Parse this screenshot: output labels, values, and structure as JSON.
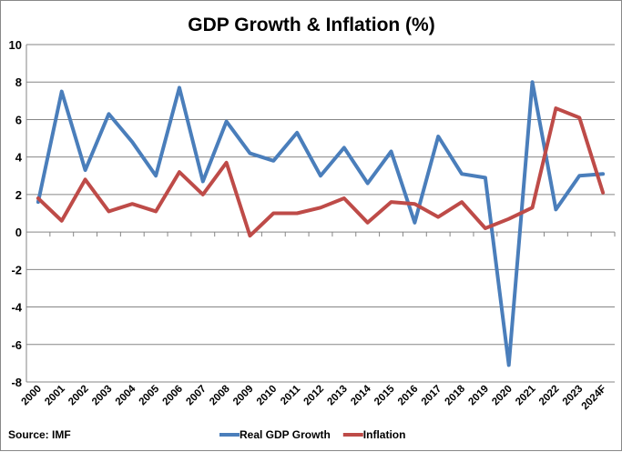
{
  "chart_data": {
    "type": "line",
    "title": "GDP Growth & Inflation (%)",
    "xlabel": "",
    "ylabel": "",
    "ylim": [
      -8,
      10
    ],
    "yticks": [
      10,
      8,
      6,
      4,
      2,
      0,
      -2,
      -4,
      -6,
      -8
    ],
    "grid": true,
    "legend": "bottom",
    "categories": [
      "2000",
      "2001",
      "2002",
      "2003",
      "2004",
      "2005",
      "2006",
      "2007",
      "2008",
      "2009",
      "2010",
      "2011",
      "2012",
      "2013",
      "2014",
      "2015",
      "2016",
      "2017",
      "2018",
      "2019",
      "2020",
      "2021",
      "2022",
      "2023",
      "2024F"
    ],
    "series": [
      {
        "name": "Real GDP Growth",
        "color": "#4a7ebb",
        "values": [
          1.6,
          7.5,
          3.3,
          6.3,
          4.8,
          3.0,
          7.7,
          2.7,
          5.9,
          4.2,
          3.8,
          5.3,
          3.0,
          4.5,
          2.6,
          4.3,
          0.5,
          5.1,
          3.1,
          2.9,
          -7.1,
          8.0,
          1.2,
          3.0,
          3.1
        ]
      },
      {
        "name": "Inflation",
        "color": "#be4b48",
        "values": [
          1.8,
          0.6,
          2.8,
          1.1,
          1.5,
          1.1,
          3.2,
          2.0,
          3.7,
          -0.2,
          1.0,
          1.0,
          1.3,
          1.8,
          0.5,
          1.6,
          1.5,
          0.8,
          1.6,
          0.2,
          0.7,
          1.3,
          6.6,
          6.1,
          2.1
        ]
      }
    ],
    "source": "Source: IMF"
  }
}
